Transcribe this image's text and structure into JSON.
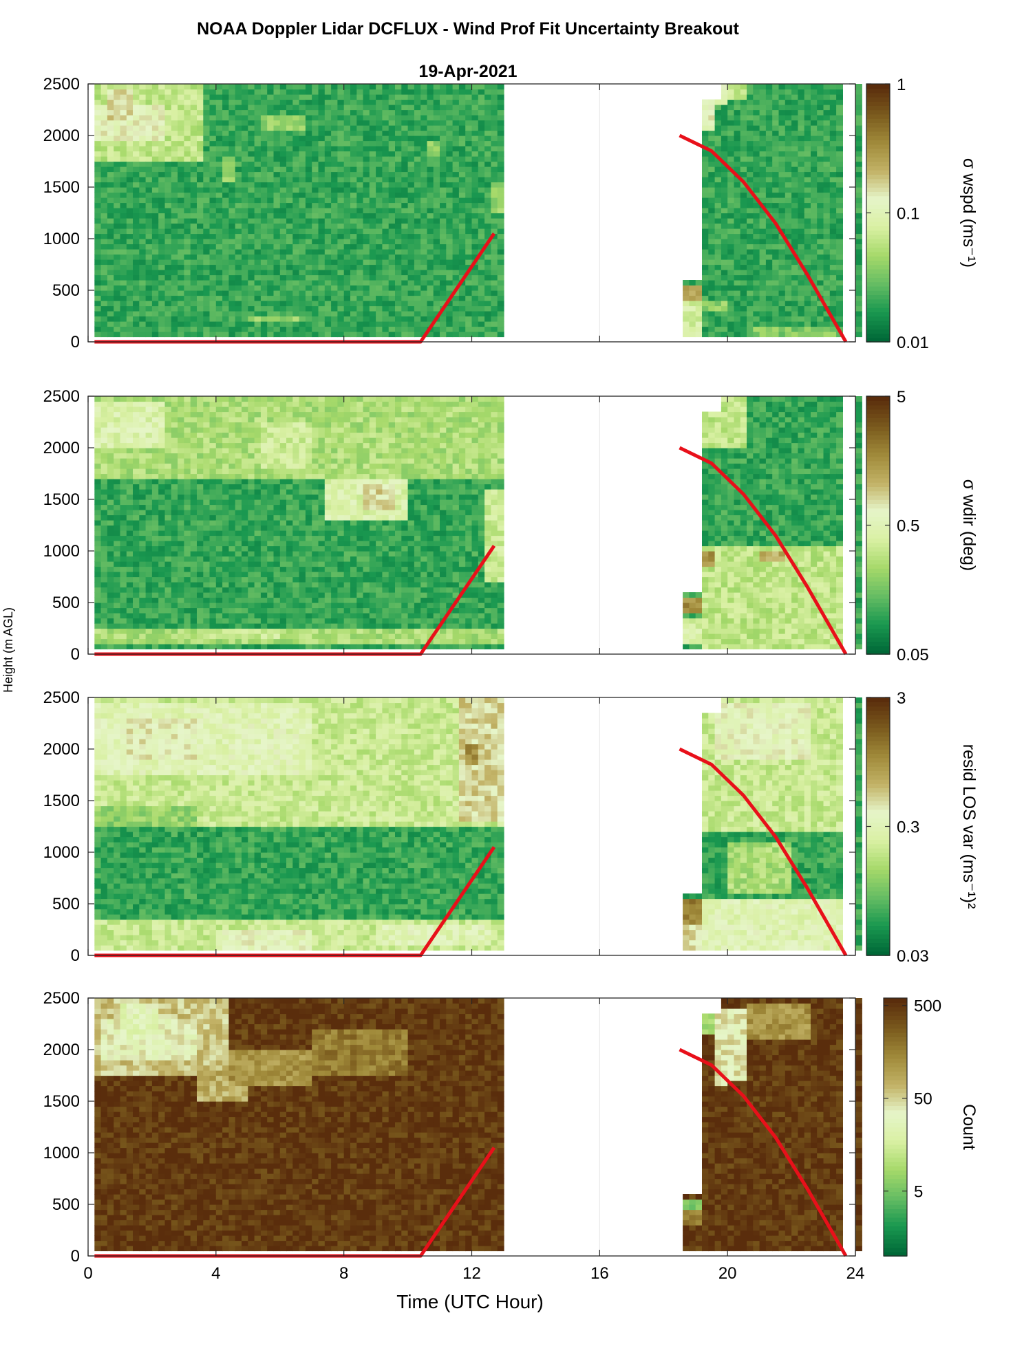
{
  "figure": {
    "title": "NOAA Doppler Lidar DCFLUX - Wind Prof Fit Uncertainty Breakout",
    "subtitle": "19-Apr-2021",
    "xlabel": "Time (UTC Hour)",
    "ylabel": "Height (m AGL)"
  },
  "chart_data": [
    {
      "type": "heatmap",
      "colorbar_label": "σ wspd (ms⁻¹)",
      "colorbar_scale": "log",
      "clim": [
        0.01,
        1
      ],
      "colorbar_ticks": [
        0.01,
        0.1,
        1
      ],
      "colorbar_tick_labels": [
        "0.01",
        "0.1",
        "1"
      ],
      "background_level": 0.02,
      "blocks": [
        {
          "t": [
            0.2,
            3.6
          ],
          "h": [
            1750,
            2500
          ],
          "level": 0.06
        },
        {
          "t": [
            0.2,
            2.5
          ],
          "h": [
            1950,
            2300
          ],
          "level": 0.12
        },
        {
          "t": [
            0.7,
            1.4
          ],
          "h": [
            2150,
            2450
          ],
          "level": 0.16
        },
        {
          "t": [
            4.3,
            4.6
          ],
          "h": [
            1550,
            1800
          ],
          "level": 0.04
        },
        {
          "t": [
            5.5,
            6.8
          ],
          "h": [
            2050,
            2200
          ],
          "level": 0.04
        },
        {
          "t": [
            10.5,
            11.0
          ],
          "h": [
            1800,
            1950
          ],
          "level": 0.04
        },
        {
          "t": [
            12.5,
            12.9
          ],
          "h": [
            1250,
            1550
          ],
          "level": 0.04
        },
        {
          "t": [
            5.1,
            6.8
          ],
          "h": [
            200,
            250
          ],
          "level": 0.04
        },
        {
          "t": [
            18.5,
            19.1
          ],
          "h": [
            50,
            550
          ],
          "level": 0.08
        },
        {
          "t": [
            18.5,
            19.1
          ],
          "h": [
            400,
            550
          ],
          "level": 0.25
        },
        {
          "t": [
            19.2,
            19.6
          ],
          "h": [
            2050,
            2500
          ],
          "level": 0.12
        },
        {
          "t": [
            19.6,
            20.0
          ],
          "h": [
            2300,
            2500
          ],
          "level": 0.1
        },
        {
          "t": [
            20.0,
            20.5
          ],
          "h": [
            2350,
            2500
          ],
          "level": 0.06
        },
        {
          "t": [
            19.1,
            20.0
          ],
          "h": [
            300,
            400
          ],
          "level": 0.04
        },
        {
          "t": [
            20.8,
            23.6
          ],
          "h": [
            50,
            150
          ],
          "level": 0.035
        }
      ],
      "gaps": [
        [
          0,
          0.15
        ],
        [
          13.0,
          18.5
        ],
        [
          18.5,
          19.2,
          600,
          2500
        ],
        [
          19.2,
          19.7,
          2350,
          2500
        ],
        [
          23.6,
          24
        ]
      ]
    },
    {
      "type": "heatmap",
      "colorbar_label": "σ wdir (deg)",
      "colorbar_scale": "log",
      "clim": [
        0.05,
        5
      ],
      "colorbar_ticks": [
        0.05,
        0.5,
        5
      ],
      "colorbar_tick_labels": [
        "0.05",
        "0.5",
        "5"
      ],
      "background_level": 0.1,
      "blocks": [
        {
          "t": [
            0.2,
            12.9
          ],
          "h": [
            1700,
            2500
          ],
          "level": 0.25
        },
        {
          "t": [
            0.2,
            2.5
          ],
          "h": [
            2000,
            2450
          ],
          "level": 0.45
        },
        {
          "t": [
            5.5,
            7.0
          ],
          "h": [
            1800,
            2250
          ],
          "level": 0.35
        },
        {
          "t": [
            7.5,
            10.0
          ],
          "h": [
            1300,
            1700
          ],
          "level": 0.45
        },
        {
          "t": [
            8.6,
            9.6
          ],
          "h": [
            1400,
            1650
          ],
          "level": 0.8
        },
        {
          "t": [
            12.3,
            13.0
          ],
          "h": [
            700,
            1600
          ],
          "level": 0.35
        },
        {
          "t": [
            0.2,
            12.9
          ],
          "h": [
            100,
            250
          ],
          "level": 0.25
        },
        {
          "t": [
            3.5,
            6.0
          ],
          "h": [
            150,
            250
          ],
          "level": 0.35
        },
        {
          "t": [
            18.5,
            19.1
          ],
          "h": [
            400,
            550
          ],
          "level": 1.6
        },
        {
          "t": [
            18.5,
            19.1
          ],
          "h": [
            100,
            350
          ],
          "level": 0.4
        },
        {
          "t": [
            19.2,
            23.6
          ],
          "h": [
            50,
            1050
          ],
          "level": 0.3
        },
        {
          "t": [
            19.2,
            19.6
          ],
          "h": [
            850,
            1000
          ],
          "level": 1.5
        },
        {
          "t": [
            21.0,
            21.8
          ],
          "h": [
            900,
            1000
          ],
          "level": 1.2
        },
        {
          "t": [
            19.2,
            20.5
          ],
          "h": [
            2000,
            2500
          ],
          "level": 0.3
        }
      ],
      "gaps": [
        [
          0,
          0.15
        ],
        [
          13.0,
          18.5
        ],
        [
          18.5,
          19.2,
          600,
          2500
        ],
        [
          19.2,
          19.7,
          2350,
          2500
        ],
        [
          23.6,
          24
        ]
      ]
    },
    {
      "type": "heatmap",
      "colorbar_label": "resid LOS var (ms⁻¹)²",
      "colorbar_scale": "log",
      "clim": [
        0.03,
        3
      ],
      "colorbar_ticks": [
        0.03,
        0.3,
        3
      ],
      "colorbar_tick_labels": [
        "0.03",
        "0.3",
        "3"
      ],
      "background_level": 0.06,
      "blocks": [
        {
          "t": [
            0.2,
            12.9
          ],
          "h": [
            1250,
            2500
          ],
          "level": 0.2
        },
        {
          "t": [
            0.2,
            7.0
          ],
          "h": [
            1750,
            2450
          ],
          "level": 0.3
        },
        {
          "t": [
            1.0,
            3.5
          ],
          "h": [
            1900,
            2300
          ],
          "level": 0.4
        },
        {
          "t": [
            11.5,
            13.0
          ],
          "h": [
            1300,
            2500
          ],
          "level": 0.5
        },
        {
          "t": [
            11.7,
            12.1
          ],
          "h": [
            1850,
            2050
          ],
          "level": 1.0
        },
        {
          "t": [
            0.2,
            3.5
          ],
          "h": [
            1250,
            1450
          ],
          "level": 0.12
        },
        {
          "t": [
            0.2,
            12.9
          ],
          "h": [
            50,
            350
          ],
          "level": 0.2
        },
        {
          "t": [
            4.0,
            7.0
          ],
          "h": [
            50,
            250
          ],
          "level": 0.35
        },
        {
          "t": [
            9.0,
            12.5
          ],
          "h": [
            100,
            300
          ],
          "level": 0.3
        },
        {
          "t": [
            18.5,
            19.1
          ],
          "h": [
            300,
            550
          ],
          "level": 1.2
        },
        {
          "t": [
            18.5,
            19.1
          ],
          "h": [
            50,
            300
          ],
          "level": 0.5
        },
        {
          "t": [
            19.2,
            23.6
          ],
          "h": [
            1200,
            2500
          ],
          "level": 0.2
        },
        {
          "t": [
            19.6,
            22.5
          ],
          "h": [
            1900,
            2450
          ],
          "level": 0.35
        },
        {
          "t": [
            19.2,
            23.6
          ],
          "h": [
            50,
            550
          ],
          "level": 0.3
        },
        {
          "t": [
            20.0,
            22.0
          ],
          "h": [
            600,
            1100
          ],
          "level": 0.15
        }
      ],
      "gaps": [
        [
          0,
          0.15
        ],
        [
          13.0,
          18.5
        ],
        [
          18.5,
          19.2,
          600,
          2500
        ],
        [
          19.2,
          19.7,
          2350,
          2500
        ],
        [
          23.6,
          24
        ]
      ]
    },
    {
      "type": "heatmap",
      "colorbar_label": "Count",
      "colorbar_scale": "log",
      "clim": [
        1,
        600
      ],
      "colorbar_ticks": [
        5,
        50,
        500
      ],
      "colorbar_tick_labels": [
        "5",
        "50",
        "500"
      ],
      "background_level": 500,
      "blocks": [
        {
          "t": [
            0.2,
            4.5
          ],
          "h": [
            1750,
            2500
          ],
          "level": 60
        },
        {
          "t": [
            0.5,
            3.5
          ],
          "h": [
            1900,
            2300
          ],
          "level": 35
        },
        {
          "t": [
            1.0,
            2.2
          ],
          "h": [
            2100,
            2450
          ],
          "level": 25
        },
        {
          "t": [
            3.5,
            5.0
          ],
          "h": [
            1500,
            1800
          ],
          "level": 80
        },
        {
          "t": [
            4.5,
            7.0
          ],
          "h": [
            1650,
            2000
          ],
          "level": 120
        },
        {
          "t": [
            7.0,
            10.0
          ],
          "h": [
            1750,
            2200
          ],
          "level": 180
        },
        {
          "t": [
            18.5,
            19.1
          ],
          "h": [
            450,
            550
          ],
          "level": 5
        },
        {
          "t": [
            18.5,
            19.1
          ],
          "h": [
            300,
            450
          ],
          "level": 150
        },
        {
          "t": [
            19.2,
            19.8
          ],
          "h": [
            2150,
            2450
          ],
          "level": 8
        },
        {
          "t": [
            19.6,
            20.6
          ],
          "h": [
            1700,
            2400
          ],
          "level": 40
        },
        {
          "t": [
            20.6,
            22.5
          ],
          "h": [
            2100,
            2450
          ],
          "level": 120
        },
        {
          "t": [
            19.6,
            20.0
          ],
          "h": [
            1650,
            1750
          ],
          "level": 30
        }
      ],
      "gaps": [
        [
          0,
          0.15
        ],
        [
          13.0,
          18.5
        ],
        [
          18.5,
          19.2,
          600,
          2500
        ],
        [
          19.2,
          19.7,
          2350,
          2500
        ],
        [
          23.6,
          24
        ]
      ]
    }
  ],
  "overlay_line": {
    "color": "#e8101a",
    "segments": [
      {
        "x": [
          0.2,
          10.4,
          12.7
        ],
        "y": [
          0,
          0,
          1050
        ]
      },
      {
        "x": [
          18.5,
          19.5,
          20.5,
          21.5,
          22.5,
          23.7
        ],
        "y": [
          2000,
          1850,
          1550,
          1150,
          650,
          0
        ]
      }
    ]
  },
  "axes": {
    "x_ticks": [
      0,
      4,
      8,
      12,
      16,
      20,
      24
    ],
    "x_tick_labels": [
      "0",
      "4",
      "8",
      "12",
      "16",
      "20",
      "24"
    ],
    "xlim": [
      0,
      24
    ],
    "y_ticks": [
      0,
      500,
      1000,
      1500,
      2000,
      2500
    ],
    "y_tick_labels": [
      "0",
      "500",
      "1000",
      "1500",
      "2000",
      "2500"
    ],
    "ylim": [
      0,
      2500
    ]
  },
  "colormap": [
    "#006837",
    "#1a9850",
    "#66bd63",
    "#a6d96a",
    "#d9f0a3",
    "#e6f5c9",
    "#c2b266",
    "#a08a3a",
    "#7a5a1d",
    "#5a2d0c"
  ]
}
